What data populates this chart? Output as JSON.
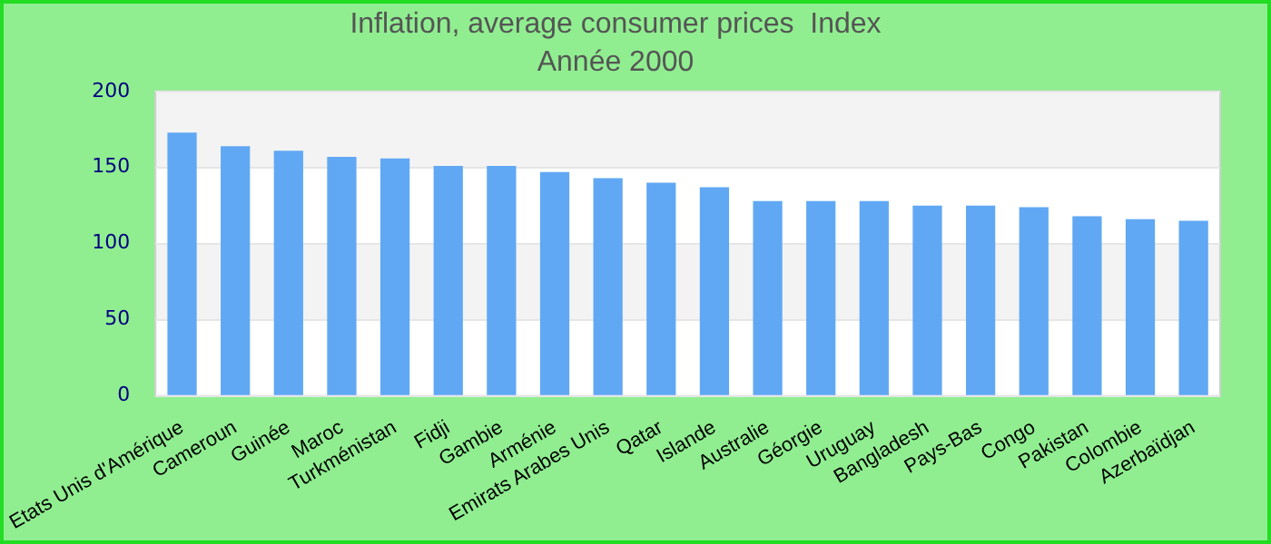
{
  "chart_data": {
    "type": "bar",
    "title": "Inflation, average consumer prices  Index",
    "subtitle": "Année 2000",
    "categories": [
      "Etats Unis d'Amérique",
      "Cameroun",
      "Guinée",
      "Maroc",
      "Turkménistan",
      "Fidji",
      "Gambie",
      "Arménie",
      "Emirats Arabes Unis",
      "Qatar",
      "Islande",
      "Australie",
      "Géorgie",
      "Uruguay",
      "Bangladesh",
      "Pays-Bas",
      "Congo",
      "Pakistan",
      "Colombie",
      "Azerbaïdjan"
    ],
    "values": [
      173,
      164,
      161,
      157,
      156,
      151,
      151,
      147,
      143,
      140,
      137,
      128,
      128,
      128,
      125,
      125,
      124,
      118,
      116,
      115
    ],
    "color": "#60a8f4",
    "ylim": [
      0,
      200
    ],
    "yticks": [
      0,
      50,
      100,
      150,
      200
    ],
    "grid": "y"
  }
}
